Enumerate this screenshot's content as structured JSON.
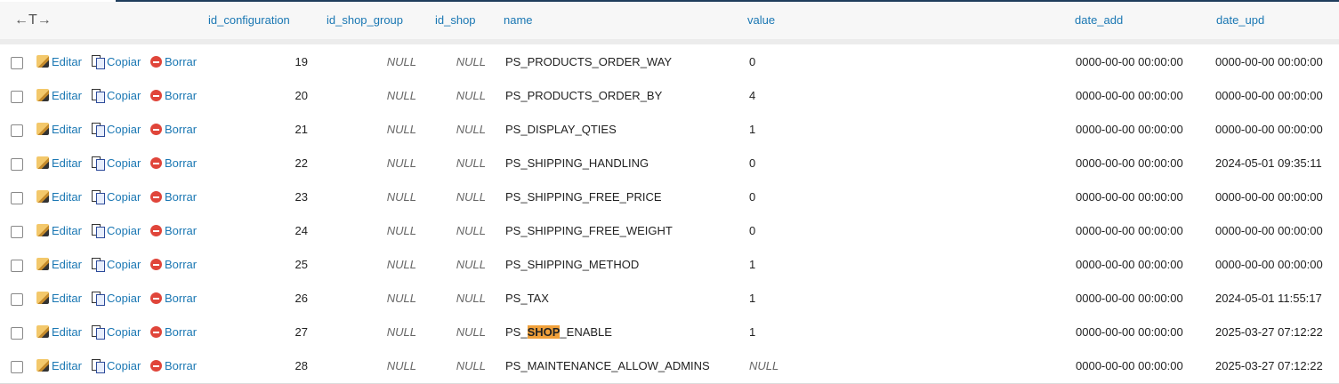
{
  "header": {
    "arrows": "←T→",
    "columns": [
      "id_configuration",
      "id_shop_group",
      "id_shop",
      "name",
      "value",
      "date_add",
      "date_upd"
    ]
  },
  "actions": {
    "edit": "Editar",
    "copy": "Copiar",
    "delete": "Borrar"
  },
  "rows": [
    {
      "id": "19",
      "group": "NULL",
      "shop": "NULL",
      "name": "PS_PRODUCTS_ORDER_WAY",
      "value": "0",
      "date_add": "0000-00-00 00:00:00",
      "date_upd": "0000-00-00 00:00:00"
    },
    {
      "id": "20",
      "group": "NULL",
      "shop": "NULL",
      "name": "PS_PRODUCTS_ORDER_BY",
      "value": "4",
      "date_add": "0000-00-00 00:00:00",
      "date_upd": "0000-00-00 00:00:00"
    },
    {
      "id": "21",
      "group": "NULL",
      "shop": "NULL",
      "name": "PS_DISPLAY_QTIES",
      "value": "1",
      "date_add": "0000-00-00 00:00:00",
      "date_upd": "0000-00-00 00:00:00"
    },
    {
      "id": "22",
      "group": "NULL",
      "shop": "NULL",
      "name": "PS_SHIPPING_HANDLING",
      "value": "0",
      "date_add": "0000-00-00 00:00:00",
      "date_upd": "2024-05-01 09:35:11"
    },
    {
      "id": "23",
      "group": "NULL",
      "shop": "NULL",
      "name": "PS_SHIPPING_FREE_PRICE",
      "value": "0",
      "date_add": "0000-00-00 00:00:00",
      "date_upd": "0000-00-00 00:00:00"
    },
    {
      "id": "24",
      "group": "NULL",
      "shop": "NULL",
      "name": "PS_SHIPPING_FREE_WEIGHT",
      "value": "0",
      "date_add": "0000-00-00 00:00:00",
      "date_upd": "0000-00-00 00:00:00"
    },
    {
      "id": "25",
      "group": "NULL",
      "shop": "NULL",
      "name": "PS_SHIPPING_METHOD",
      "value": "1",
      "date_add": "0000-00-00 00:00:00",
      "date_upd": "0000-00-00 00:00:00"
    },
    {
      "id": "26",
      "group": "NULL",
      "shop": "NULL",
      "name": "PS_TAX",
      "value": "1",
      "date_add": "0000-00-00 00:00:00",
      "date_upd": "2024-05-01 11:55:17"
    },
    {
      "id": "27",
      "group": "NULL",
      "shop": "NULL",
      "name": "PS_SHOP_ENABLE",
      "name_parts": [
        "PS_",
        "SHOP",
        "_ENABLE"
      ],
      "value": "1",
      "date_add": "0000-00-00 00:00:00",
      "date_upd": "2025-03-27 07:12:22"
    },
    {
      "id": "28",
      "group": "NULL",
      "shop": "NULL",
      "name": "PS_MAINTENANCE_ALLOW_ADMINS",
      "value": "NULL",
      "value_is_null": true,
      "date_add": "0000-00-00 00:00:00",
      "date_upd": "2025-03-27 07:12:22"
    }
  ],
  "colors": {
    "link": "#1a77b3",
    "highlight": "#f0a03a",
    "delete": "#e0453a"
  }
}
